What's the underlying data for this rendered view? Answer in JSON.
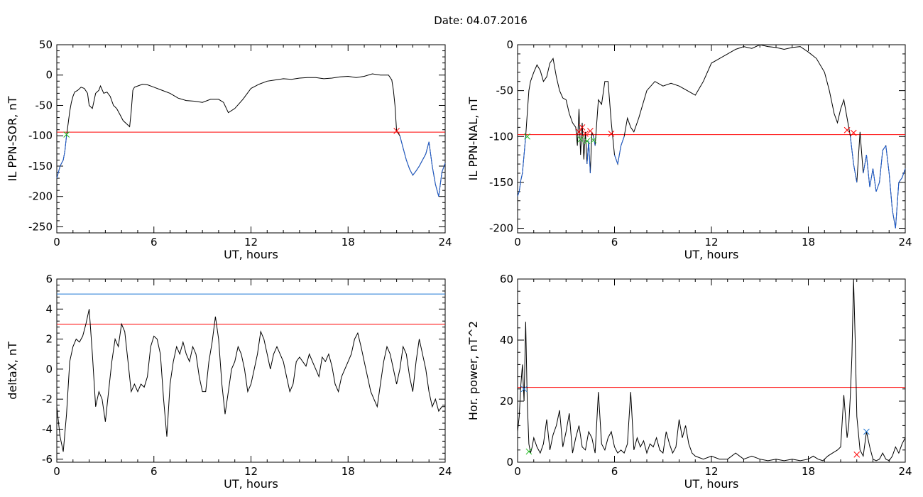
{
  "title": "Date:  04.07.2016",
  "colors": {
    "trace": "#000000",
    "threshold_red": "#ff0000",
    "threshold_blue": "#1f77d4",
    "below_threshold_trace": "#1f5fd4",
    "marker_red": "#ff0000",
    "marker_green": "#22bb22",
    "marker_blue": "#1f77d4"
  },
  "chart_data": [
    {
      "id": "il-ppn-sor",
      "type": "line",
      "title": "",
      "xlabel": "UT, hours",
      "ylabel": "IL PPN-SOR, nT",
      "xlim": [
        0,
        24
      ],
      "ylim": [
        -260,
        50
      ],
      "xticks": [
        0,
        6,
        12,
        18,
        24
      ],
      "yticks": [
        -250,
        -200,
        -150,
        -100,
        -50,
        0,
        50
      ],
      "threshold": -94,
      "threshold_color": "red",
      "below_threshold_color": "blue",
      "series": [
        {
          "x": [
            0,
            0.1,
            0.2,
            0.3,
            0.4,
            0.5,
            0.6,
            0.7,
            0.8,
            0.9,
            1.0,
            1.1,
            1.3,
            1.5,
            1.7,
            1.9,
            2.0,
            2.2,
            2.4,
            2.6,
            2.7,
            2.9,
            3.1,
            3.3,
            3.5,
            3.7,
            3.9,
            4.1,
            4.3,
            4.5,
            4.6,
            4.7,
            4.8,
            5.0,
            5.3,
            5.6,
            6.0,
            6.5,
            7.0,
            7.5,
            8.0,
            8.5,
            9.0,
            9.5,
            10.0,
            10.3,
            10.6,
            11.0,
            11.5,
            12.0,
            12.5,
            13.0,
            13.5,
            14.0,
            14.5,
            15.0,
            15.5,
            16.0,
            16.5,
            17.0,
            17.5,
            18.0,
            18.5,
            19.0,
            19.5,
            20.0,
            20.3,
            20.5,
            20.7,
            20.8,
            20.9,
            21.0,
            21.2,
            21.4,
            21.6,
            21.8,
            22.0,
            22.2,
            22.4,
            22.6,
            22.8,
            23.0,
            23.2,
            23.4,
            23.6,
            23.8,
            24.0
          ],
          "y": [
            -170,
            -160,
            -150,
            -145,
            -140,
            -125,
            -100,
            -80,
            -60,
            -45,
            -35,
            -28,
            -25,
            -20,
            -22,
            -30,
            -50,
            -55,
            -30,
            -25,
            -18,
            -30,
            -28,
            -35,
            -50,
            -55,
            -65,
            -75,
            -80,
            -85,
            -60,
            -25,
            -20,
            -18,
            -15,
            -16,
            -20,
            -25,
            -30,
            -38,
            -42,
            -43,
            -45,
            -40,
            -40,
            -45,
            -62,
            -55,
            -40,
            -22,
            -15,
            -10,
            -8,
            -6,
            -7,
            -5,
            -4,
            -4,
            -6,
            -5,
            -3,
            -2,
            -4,
            -2,
            2,
            0,
            0,
            0,
            -8,
            -25,
            -50,
            -92,
            -100,
            -120,
            -140,
            -155,
            -165,
            -158,
            -150,
            -140,
            -130,
            -110,
            -150,
            -180,
            -200,
            -160,
            -145
          ]
        }
      ],
      "markers": [
        {
          "x": 0.6,
          "y": -98,
          "color": "green"
        },
        {
          "x": 21.0,
          "y": -92,
          "color": "red"
        }
      ]
    },
    {
      "id": "il-ppn-nal",
      "type": "line",
      "title": "",
      "xlabel": "UT, hours",
      "ylabel": "IL PPN-NAL, nT",
      "xlim": [
        0,
        24
      ],
      "ylim": [
        -205,
        0
      ],
      "xticks": [
        0,
        6,
        12,
        18,
        24
      ],
      "yticks": [
        -200,
        -150,
        -100,
        -50,
        0
      ],
      "threshold": -98,
      "threshold_color": "red",
      "below_threshold_color": "blue",
      "series": [
        {
          "x": [
            0,
            0.1,
            0.2,
            0.3,
            0.4,
            0.5,
            0.6,
            0.7,
            0.8,
            0.9,
            1.0,
            1.2,
            1.4,
            1.6,
            1.8,
            2.0,
            2.2,
            2.4,
            2.6,
            2.8,
            3.0,
            3.2,
            3.4,
            3.6,
            3.7,
            3.8,
            3.9,
            4.0,
            4.1,
            4.2,
            4.3,
            4.4,
            4.5,
            4.6,
            4.7,
            4.8,
            5.0,
            5.2,
            5.4,
            5.6,
            5.8,
            6.0,
            6.2,
            6.4,
            6.6,
            6.8,
            7.0,
            7.2,
            7.5,
            8.0,
            8.5,
            9.0,
            9.5,
            10.0,
            10.5,
            11.0,
            11.5,
            12.0,
            12.5,
            13.0,
            13.5,
            14.0,
            14.5,
            15.0,
            15.5,
            16.0,
            16.5,
            17.0,
            17.5,
            18.0,
            18.5,
            19.0,
            19.3,
            19.6,
            19.8,
            20.0,
            20.2,
            20.4,
            20.6,
            20.8,
            21.0,
            21.2,
            21.4,
            21.6,
            21.8,
            22.0,
            22.2,
            22.4,
            22.6,
            22.8,
            23.0,
            23.2,
            23.4,
            23.6,
            23.8,
            24.0
          ],
          "y": [
            -165,
            -160,
            -148,
            -140,
            -120,
            -100,
            -75,
            -50,
            -40,
            -35,
            -30,
            -22,
            -28,
            -40,
            -35,
            -20,
            -15,
            -35,
            -50,
            -58,
            -60,
            -75,
            -85,
            -90,
            -110,
            -70,
            -120,
            -85,
            -125,
            -95,
            -130,
            -105,
            -140,
            -95,
            -100,
            -110,
            -60,
            -65,
            -40,
            -40,
            -85,
            -120,
            -130,
            -110,
            -100,
            -80,
            -90,
            -95,
            -80,
            -50,
            -40,
            -45,
            -42,
            -45,
            -50,
            -55,
            -40,
            -20,
            -15,
            -10,
            -5,
            -2,
            -4,
            0,
            -2,
            -3,
            -5,
            -3,
            -2,
            -8,
            -15,
            -30,
            -50,
            -75,
            -85,
            -70,
            -60,
            -80,
            -100,
            -130,
            -150,
            -95,
            -140,
            -120,
            -155,
            -135,
            -160,
            -150,
            -115,
            -110,
            -140,
            -180,
            -200,
            -150,
            -145,
            -135
          ]
        }
      ],
      "markers": [
        {
          "x": 0.6,
          "y": -100,
          "color": "green"
        },
        {
          "x": 3.8,
          "y": -95,
          "color": "red"
        },
        {
          "x": 4.0,
          "y": -90,
          "color": "red"
        },
        {
          "x": 4.2,
          "y": -97,
          "color": "red"
        },
        {
          "x": 4.5,
          "y": -94,
          "color": "red"
        },
        {
          "x": 5.8,
          "y": -97,
          "color": "red"
        },
        {
          "x": 3.9,
          "y": -103,
          "color": "green"
        },
        {
          "x": 4.3,
          "y": -105,
          "color": "green"
        },
        {
          "x": 4.7,
          "y": -104,
          "color": "green"
        },
        {
          "x": 20.4,
          "y": -93,
          "color": "red"
        },
        {
          "x": 20.8,
          "y": -96,
          "color": "red"
        }
      ]
    },
    {
      "id": "deltax",
      "type": "line",
      "title": "",
      "xlabel": "UT, hours",
      "ylabel": "deltaX, nT",
      "xlim": [
        0,
        24
      ],
      "ylim": [
        -6.2,
        6
      ],
      "xticks": [
        0,
        6,
        12,
        18,
        24
      ],
      "yticks": [
        -6,
        -4,
        -2,
        0,
        2,
        4,
        6
      ],
      "threshold_red": 3,
      "threshold_blue": 5,
      "series": [
        {
          "x": [
            0,
            0.2,
            0.4,
            0.6,
            0.8,
            1.0,
            1.2,
            1.4,
            1.6,
            1.8,
            2.0,
            2.2,
            2.4,
            2.6,
            2.8,
            3.0,
            3.2,
            3.4,
            3.6,
            3.8,
            4.0,
            4.2,
            4.4,
            4.6,
            4.8,
            5.0,
            5.2,
            5.4,
            5.6,
            5.8,
            6.0,
            6.2,
            6.4,
            6.6,
            6.8,
            7.0,
            7.2,
            7.4,
            7.6,
            7.8,
            8.0,
            8.2,
            8.4,
            8.6,
            8.8,
            9.0,
            9.2,
            9.4,
            9.6,
            9.8,
            10.0,
            10.2,
            10.4,
            10.6,
            10.8,
            11.0,
            11.2,
            11.4,
            11.6,
            11.8,
            12.0,
            12.2,
            12.4,
            12.6,
            12.8,
            13.0,
            13.2,
            13.4,
            13.6,
            13.8,
            14.0,
            14.2,
            14.4,
            14.6,
            14.8,
            15.0,
            15.2,
            15.4,
            15.6,
            15.8,
            16.0,
            16.2,
            16.4,
            16.6,
            16.8,
            17.0,
            17.2,
            17.4,
            17.6,
            17.8,
            18.0,
            18.2,
            18.4,
            18.6,
            18.8,
            19.0,
            19.2,
            19.4,
            19.6,
            19.8,
            20.0,
            20.2,
            20.4,
            20.6,
            20.8,
            21.0,
            21.2,
            21.4,
            21.6,
            21.8,
            22.0,
            22.2,
            22.4,
            22.6,
            22.8,
            23.0,
            23.2,
            23.4,
            23.6,
            23.8,
            24.0
          ],
          "y": [
            -2.5,
            -4.5,
            -5.5,
            -3.0,
            0.5,
            1.5,
            2.0,
            1.8,
            2.2,
            3.0,
            4.0,
            1.0,
            -2.5,
            -1.5,
            -2.0,
            -3.5,
            -1.5,
            0.5,
            2.0,
            1.5,
            3.0,
            2.5,
            0.5,
            -1.5,
            -1.0,
            -1.5,
            -1.0,
            -1.2,
            -0.5,
            1.5,
            2.2,
            2.0,
            1.0,
            -2.0,
            -4.5,
            -1.0,
            0.5,
            1.5,
            1.0,
            1.8,
            1.0,
            0.5,
            1.5,
            1.0,
            -0.5,
            -1.5,
            -1.5,
            0.5,
            1.8,
            3.5,
            2.0,
            -1.0,
            -3.0,
            -1.5,
            0.0,
            0.5,
            1.5,
            1.0,
            0.0,
            -1.5,
            -1.0,
            0.0,
            1.0,
            2.5,
            2.0,
            1.0,
            0.0,
            1.0,
            1.5,
            1.0,
            0.5,
            -0.5,
            -1.5,
            -1.0,
            0.5,
            0.8,
            0.5,
            0.2,
            1.0,
            0.5,
            0.0,
            -0.5,
            0.8,
            0.5,
            1.0,
            0.2,
            -1.0,
            -1.5,
            -0.5,
            0.0,
            0.5,
            1.0,
            2.0,
            2.4,
            1.5,
            0.5,
            -0.5,
            -1.5,
            -2.0,
            -2.5,
            -1.0,
            0.5,
            1.5,
            1.0,
            0.0,
            -1.0,
            0.0,
            1.5,
            1.0,
            -0.5,
            -1.5,
            0.5,
            2.0,
            1.0,
            0.0,
            -1.5,
            -2.5,
            -2.0,
            -2.8,
            -2.5,
            -2.5
          ]
        }
      ]
    },
    {
      "id": "hor-power",
      "type": "line",
      "title": "",
      "xlabel": "UT, hours",
      "ylabel": "Hor. power, nT^2",
      "xlim": [
        0,
        24
      ],
      "ylim": [
        0,
        60
      ],
      "xticks": [
        0,
        6,
        12,
        18,
        24
      ],
      "yticks": [
        0,
        20,
        40,
        60
      ],
      "threshold": 24.5,
      "threshold_color": "red",
      "series": [
        {
          "x": [
            0,
            0.1,
            0.2,
            0.3,
            0.4,
            0.5,
            0.6,
            0.7,
            0.8,
            0.9,
            1.0,
            1.2,
            1.4,
            1.6,
            1.8,
            2.0,
            2.2,
            2.4,
            2.6,
            2.8,
            3.0,
            3.2,
            3.4,
            3.6,
            3.8,
            4.0,
            4.2,
            4.4,
            4.6,
            4.8,
            5.0,
            5.2,
            5.4,
            5.6,
            5.8,
            6.0,
            6.2,
            6.4,
            6.6,
            6.8,
            7.0,
            7.2,
            7.4,
            7.6,
            7.8,
            8.0,
            8.2,
            8.4,
            8.6,
            8.8,
            9.0,
            9.2,
            9.4,
            9.6,
            9.8,
            10.0,
            10.2,
            10.4,
            10.6,
            10.8,
            11.0,
            11.5,
            12.0,
            12.5,
            13.0,
            13.5,
            14.0,
            14.5,
            15.0,
            15.5,
            16.0,
            16.5,
            17.0,
            17.5,
            18.0,
            18.3,
            18.6,
            18.9,
            19.2,
            19.5,
            19.8,
            20.0,
            20.2,
            20.4,
            20.5,
            20.6,
            20.7,
            20.8,
            20.9,
            21.0,
            21.2,
            21.4,
            21.6,
            21.8,
            22.0,
            22.2,
            22.4,
            22.6,
            22.8,
            23.0,
            23.2,
            23.4,
            23.6,
            23.8,
            24.0
          ],
          "y": [
            10,
            15,
            25,
            32,
            20,
            46,
            20,
            6,
            3,
            5,
            8,
            5,
            3,
            6,
            14,
            4,
            9,
            12,
            17,
            5,
            10,
            16,
            3,
            8,
            12,
            5,
            4,
            10,
            8,
            3,
            23,
            6,
            4,
            8,
            10,
            5,
            3,
            4,
            3,
            6,
            23,
            4,
            8,
            5,
            7,
            3,
            6,
            5,
            8,
            4,
            3,
            10,
            6,
            3,
            5,
            14,
            8,
            12,
            6,
            3,
            2,
            1,
            2,
            1,
            1,
            3,
            1,
            2,
            1,
            0.5,
            1,
            0.5,
            1,
            0.5,
            1,
            2,
            1,
            0.5,
            2,
            3,
            4,
            5,
            22,
            8,
            12,
            22,
            35,
            60,
            40,
            15,
            4,
            2,
            10,
            5,
            1,
            0.5,
            1,
            3,
            1,
            0.5,
            2,
            5,
            3,
            6,
            8
          ]
        }
      ],
      "markers": [
        {
          "x": 0.4,
          "y": 24,
          "color": "blue"
        },
        {
          "x": 0.7,
          "y": 3.5,
          "color": "green"
        },
        {
          "x": 21.0,
          "y": 2.5,
          "color": "red"
        },
        {
          "x": 21.6,
          "y": 10,
          "color": "blue"
        }
      ]
    }
  ]
}
